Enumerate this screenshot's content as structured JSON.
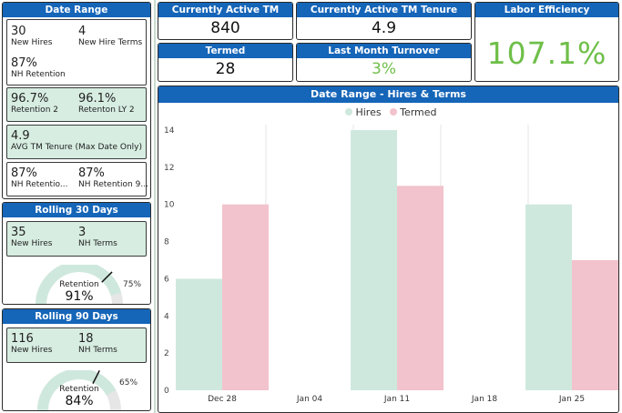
{
  "colors": {
    "header_blue": "#1565b8",
    "green_fill": "#d7ede2",
    "accent_green": "#6fbf49",
    "hires": "#cfe8dd",
    "termed": "#f2c3cc"
  },
  "date_range": {
    "title": "Date Range",
    "new_hires": {
      "value": "30",
      "label": "New Hires"
    },
    "new_hire_terms": {
      "value": "4",
      "label": "New Hire Terms"
    },
    "nh_retention": {
      "value": "87%",
      "label": "NH Retention"
    },
    "retention2": {
      "value": "96.7%",
      "label": "Retention 2"
    },
    "retention_ly2": {
      "value": "96.1%",
      "label": "Retenton LY 2"
    },
    "avg_tenure": {
      "value": "4.9",
      "label": "AVG TM Tenure (Max Date Only)"
    },
    "nh_retention_a": {
      "value": "87%",
      "label": "NH Retentio..."
    },
    "nh_retention_b": {
      "value": "87%",
      "label": "NH Retention 9..."
    }
  },
  "rolling30": {
    "title": "Rolling 30 Days",
    "new_hires": {
      "value": "35",
      "label": "New Hires"
    },
    "nh_terms": {
      "value": "3",
      "label": "NH Terms"
    },
    "gauge": {
      "label": "Retention",
      "value": "91%",
      "target": "75%",
      "fraction": 0.91,
      "target_fraction": 0.75
    }
  },
  "rolling90": {
    "title": "Rolling 90 Days",
    "new_hires": {
      "value": "116",
      "label": "New Hires"
    },
    "nh_terms": {
      "value": "18",
      "label": "NH Terms"
    },
    "gauge": {
      "label": "Retention",
      "value": "84%",
      "target": "65%",
      "fraction": 0.84,
      "target_fraction": 0.65
    }
  },
  "kpis": {
    "active_tm": {
      "title": "Currently Active TM",
      "value": "840"
    },
    "active_tenure": {
      "title": "Currently Active TM Tenure",
      "value": "4.9"
    },
    "termed": {
      "title": "Termed",
      "value": "28"
    },
    "turnover": {
      "title": "Last Month Turnover",
      "value": "3%"
    },
    "labor": {
      "title": "Labor Efficiency",
      "value": "107.1%"
    }
  },
  "chart_data": {
    "type": "bar",
    "title": "Date Range - Hires & Terms",
    "categories": [
      "Dec 28",
      "Jan 04",
      "Jan 11",
      "Jan 18",
      "Jan 25"
    ],
    "series": [
      {
        "name": "Hires",
        "values": [
          6,
          0,
          14,
          0,
          10
        ]
      },
      {
        "name": "Termed",
        "values": [
          10,
          0,
          11,
          0,
          7
        ]
      }
    ],
    "ylim": [
      0,
      14
    ],
    "yticks": [
      "0",
      "2",
      "4",
      "6",
      "8",
      "10",
      "12",
      "14"
    ],
    "legend_position": "top-center",
    "grid": "vertical"
  }
}
